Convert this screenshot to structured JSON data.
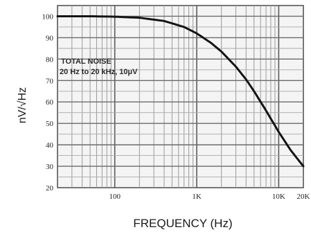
{
  "chart_data": {
    "type": "line",
    "title": "",
    "xlabel": "FREQUENCY (Hz)",
    "ylabel": "nV/√Hz",
    "x_scale": "log",
    "xlim": [
      20,
      20000
    ],
    "ylim": [
      20,
      105
    ],
    "grid": true,
    "x_ticks": [
      {
        "value": 100,
        "label": "100"
      },
      {
        "value": 1000,
        "label": "1K"
      },
      {
        "value": 10000,
        "label": "10K"
      },
      {
        "value": 20000,
        "label": "20K"
      }
    ],
    "y_ticks": [
      {
        "value": 100,
        "label": "100"
      },
      {
        "value": 90,
        "label": "90"
      },
      {
        "value": 80,
        "label": "80"
      },
      {
        "value": 70,
        "label": "70"
      },
      {
        "value": 60,
        "label": "60"
      },
      {
        "value": 50,
        "label": "50"
      },
      {
        "value": 40,
        "label": "40"
      },
      {
        "value": 30,
        "label": "30"
      },
      {
        "value": 20,
        "label": "20"
      }
    ],
    "annotations": [
      "TOTAL NOISE",
      "20 Hz to 20 kHz, 10μV"
    ],
    "series": [
      {
        "x": [
          20,
          50,
          100,
          200,
          400,
          700,
          1000,
          1500,
          2000,
          3000,
          4000,
          5000,
          7000,
          10000,
          14000,
          20000
        ],
        "y": [
          100,
          100,
          99.8,
          99.3,
          97.8,
          95,
          92,
          87.5,
          83.5,
          76.5,
          70.5,
          65,
          56,
          46,
          37.5,
          30
        ],
        "color": "#141414"
      }
    ]
  }
}
